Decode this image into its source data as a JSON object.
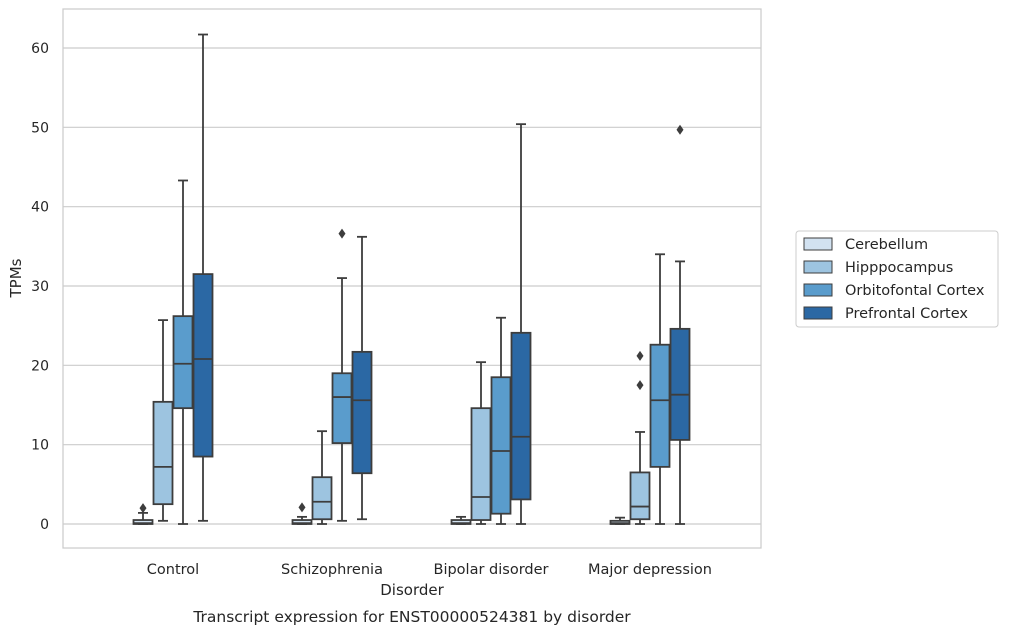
{
  "chart_data": {
    "type": "box",
    "caption": "Transcript expression for ENST00000524381 by disorder",
    "xlabel": "Disorder",
    "ylabel": "TPMs",
    "ylim": [
      -3,
      65
    ],
    "yticks": [
      0,
      10,
      20,
      30,
      40,
      50,
      60
    ],
    "grid": true,
    "legend_position": "right",
    "categories": [
      "Control",
      "Schizophrenia",
      "Bipolar disorder",
      "Major depression"
    ],
    "series": [
      {
        "name": "Cerebellum",
        "color": "#d2e2f1",
        "boxes": [
          {
            "whisker_low": 0,
            "q1": 0,
            "median": 0.1,
            "q3": 0.5,
            "whisker_high": 1.4,
            "outliers": [
              2.0
            ]
          },
          {
            "whisker_low": 0,
            "q1": 0,
            "median": 0.1,
            "q3": 0.5,
            "whisker_high": 0.9,
            "outliers": [
              2.1
            ]
          },
          {
            "whisker_low": 0,
            "q1": 0,
            "median": 0.1,
            "q3": 0.5,
            "whisker_high": 0.9,
            "outliers": []
          },
          {
            "whisker_low": 0,
            "q1": 0,
            "median": 0.1,
            "q3": 0.4,
            "whisker_high": 0.8,
            "outliers": []
          }
        ]
      },
      {
        "name": "Hipppocampus",
        "color": "#9dc4e0",
        "boxes": [
          {
            "whisker_low": 0.4,
            "q1": 2.5,
            "median": 7.2,
            "q3": 15.4,
            "whisker_high": 25.7,
            "outliers": []
          },
          {
            "whisker_low": 0,
            "q1": 0.6,
            "median": 2.8,
            "q3": 5.9,
            "whisker_high": 11.7,
            "outliers": []
          },
          {
            "whisker_low": 0,
            "q1": 0.5,
            "median": 3.4,
            "q3": 14.6,
            "whisker_high": 20.4,
            "outliers": []
          },
          {
            "whisker_low": 0,
            "q1": 0.6,
            "median": 2.2,
            "q3": 6.5,
            "whisker_high": 11.6,
            "outliers": [
              17.5,
              21.2
            ]
          }
        ]
      },
      {
        "name": "Orbitofontal Cortex",
        "color": "#5a9ccc",
        "boxes": [
          {
            "whisker_low": 0,
            "q1": 14.6,
            "median": 20.2,
            "q3": 26.2,
            "whisker_high": 43.3,
            "outliers": []
          },
          {
            "whisker_low": 0.4,
            "q1": 10.2,
            "median": 16.0,
            "q3": 19.0,
            "whisker_high": 31.0,
            "outliers": [
              36.6
            ]
          },
          {
            "whisker_low": 0,
            "q1": 1.3,
            "median": 9.2,
            "q3": 18.5,
            "whisker_high": 26.0,
            "outliers": []
          },
          {
            "whisker_low": 0,
            "q1": 7.2,
            "median": 15.6,
            "q3": 22.6,
            "whisker_high": 34.0,
            "outliers": []
          }
        ]
      },
      {
        "name": "Prefrontal Cortex",
        "color": "#2b68a4",
        "boxes": [
          {
            "whisker_low": 0.4,
            "q1": 8.5,
            "median": 20.8,
            "q3": 31.5,
            "whisker_high": 61.7,
            "outliers": []
          },
          {
            "whisker_low": 0.6,
            "q1": 6.4,
            "median": 15.6,
            "q3": 21.7,
            "whisker_high": 36.2,
            "outliers": []
          },
          {
            "whisker_low": 0,
            "q1": 3.1,
            "median": 11.0,
            "q3": 24.1,
            "whisker_high": 50.4,
            "outliers": []
          },
          {
            "whisker_low": 0,
            "q1": 10.6,
            "median": 16.3,
            "q3": 24.6,
            "whisker_high": 33.1,
            "outliers": [
              49.7
            ]
          }
        ]
      }
    ]
  }
}
